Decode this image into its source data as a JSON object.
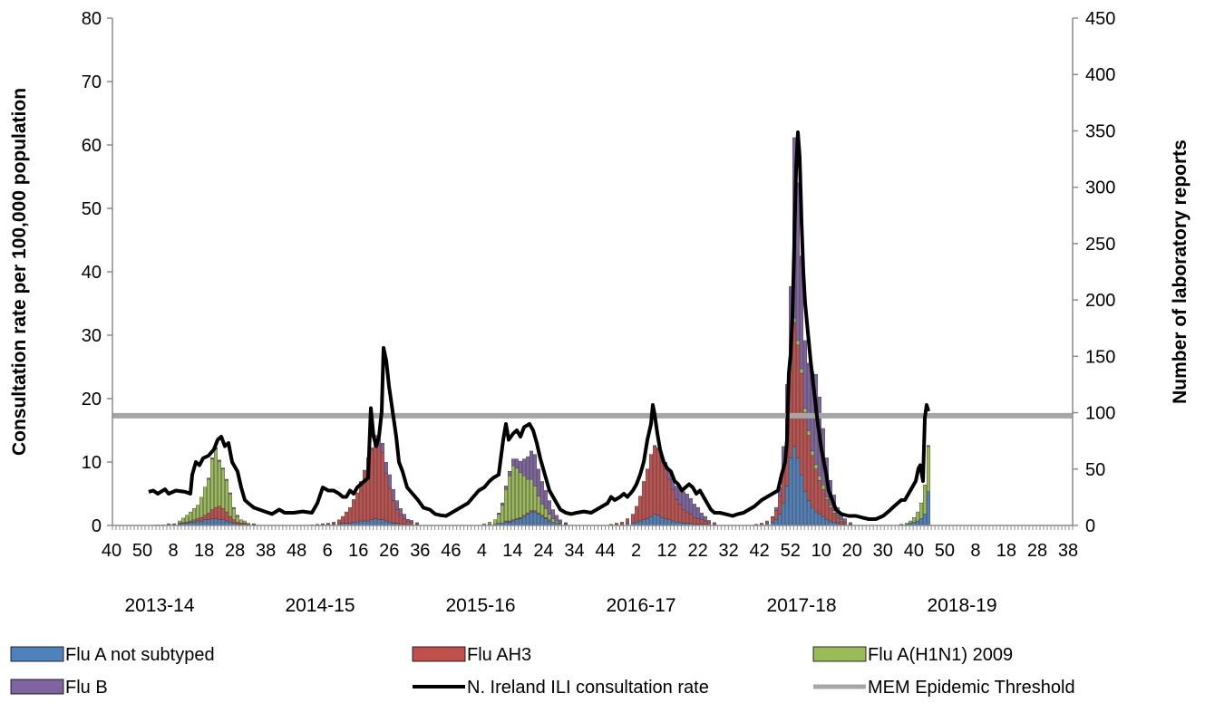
{
  "chart_data": {
    "type": "bar",
    "y_left": {
      "label": "Consultation rate per 100,000 population",
      "ticks": [
        0,
        10,
        20,
        30,
        40,
        50,
        60,
        70,
        80
      ],
      "range": [
        0,
        80
      ]
    },
    "y_right": {
      "label": "Number of laboratory reports",
      "ticks": [
        0,
        50,
        100,
        150,
        200,
        250,
        300,
        350,
        400,
        450
      ],
      "range": [
        0,
        450
      ]
    },
    "x_tick_labels": [
      "40",
      "50",
      "8",
      "18",
      "28",
      "38",
      "48",
      "6",
      "16",
      "26",
      "36",
      "46",
      "4",
      "14",
      "24",
      "34",
      "44",
      "2",
      "12",
      "22",
      "32",
      "42",
      "52",
      "10",
      "20",
      "30",
      "40",
      "50",
      "8",
      "18",
      "28",
      "38"
    ],
    "seasons": [
      "2013-14",
      "2014-15",
      "2015-16",
      "2016-17",
      "2017-18",
      "2018-19"
    ],
    "legend": {
      "flu_a_not_subtyped": "Flu A not subtyped",
      "flu_ah3": "Flu AH3",
      "flu_h1n1": "Flu A(H1N1) 2009",
      "flu_b": "Flu B",
      "ili_rate": "N. Ireland ILI consultation rate",
      "mem_threshold": "MEM Epidemic Threshold"
    },
    "colors": {
      "flu_a_not_subtyped": "#4F81BD",
      "flu_ah3": "#C0504D",
      "flu_h1n1": "#9BBB59",
      "flu_b": "#8064A2",
      "ili_rate": "#000000",
      "mem_threshold": "#A6A6A6"
    },
    "mem_threshold_value": 17.3,
    "ili_series": [
      [
        40,
        5.3
      ],
      [
        45,
        5.5
      ],
      [
        50,
        5.0
      ],
      [
        58,
        5.7
      ],
      [
        62,
        5.0
      ],
      [
        70,
        5.5
      ],
      [
        80,
        5.3
      ],
      [
        86,
        5.0
      ],
      [
        88,
        8.0
      ],
      [
        92,
        10.0
      ],
      [
        96,
        9.5
      ],
      [
        100,
        10.6
      ],
      [
        106,
        11.0
      ],
      [
        112,
        12.0
      ],
      [
        116,
        13.5
      ],
      [
        120,
        14.0
      ],
      [
        124,
        12.5
      ],
      [
        128,
        13.0
      ],
      [
        132,
        10.0
      ],
      [
        138,
        8.5
      ],
      [
        142,
        6.0
      ],
      [
        146,
        4.0
      ],
      [
        150,
        3.5
      ],
      [
        156,
        2.8
      ],
      [
        162,
        2.5
      ],
      [
        168,
        2.2
      ],
      [
        176,
        1.8
      ],
      [
        184,
        2.5
      ],
      [
        190,
        2.0
      ],
      [
        200,
        2.0
      ],
      [
        210,
        2.2
      ],
      [
        220,
        2.0
      ],
      [
        226,
        3.5
      ],
      [
        232,
        6.0
      ],
      [
        238,
        5.5
      ],
      [
        244,
        5.5
      ],
      [
        250,
        5.0
      ],
      [
        254,
        4.5
      ],
      [
        258,
        4.5
      ],
      [
        262,
        5.5
      ],
      [
        266,
        5.0
      ],
      [
        270,
        6.0
      ],
      [
        274,
        6.5
      ],
      [
        278,
        7.0
      ],
      [
        282,
        7.5
      ],
      [
        285,
        18.5
      ],
      [
        288,
        14.0
      ],
      [
        291,
        12.5
      ],
      [
        294,
        14.0
      ],
      [
        297,
        18.0
      ],
      [
        299,
        28.0
      ],
      [
        302,
        26.0
      ],
      [
        305,
        22.0
      ],
      [
        309,
        18.0
      ],
      [
        313,
        14.0
      ],
      [
        316,
        10.0
      ],
      [
        320,
        8.5
      ],
      [
        325,
        6.0
      ],
      [
        331,
        5.0
      ],
      [
        337,
        4.0
      ],
      [
        343,
        2.8
      ],
      [
        350,
        2.5
      ],
      [
        356,
        1.8
      ],
      [
        362,
        1.6
      ],
      [
        368,
        1.5
      ],
      [
        374,
        2.0
      ],
      [
        380,
        2.5
      ],
      [
        386,
        3.0
      ],
      [
        392,
        3.5
      ],
      [
        398,
        4.5
      ],
      [
        404,
        5.5
      ],
      [
        410,
        6.0
      ],
      [
        416,
        7.0
      ],
      [
        420,
        7.5
      ],
      [
        426,
        8.0
      ],
      [
        431,
        13.5
      ],
      [
        434,
        16.0
      ],
      [
        437,
        13.5
      ],
      [
        442,
        14.5
      ],
      [
        446,
        15.0
      ],
      [
        450,
        14.0
      ],
      [
        454,
        15.5
      ],
      [
        460,
        16.0
      ],
      [
        464,
        15.0
      ],
      [
        468,
        13.0
      ],
      [
        472,
        10.5
      ],
      [
        477,
        8.0
      ],
      [
        482,
        5.5
      ],
      [
        488,
        4.0
      ],
      [
        494,
        2.5
      ],
      [
        500,
        2.0
      ],
      [
        506,
        1.8
      ],
      [
        512,
        2.0
      ],
      [
        520,
        2.2
      ],
      [
        528,
        2.0
      ],
      [
        534,
        2.5
      ],
      [
        540,
        3.0
      ],
      [
        546,
        3.5
      ],
      [
        550,
        4.5
      ],
      [
        554,
        4.0
      ],
      [
        560,
        4.5
      ],
      [
        564,
        5.0
      ],
      [
        568,
        4.5
      ],
      [
        574,
        5.5
      ],
      [
        578,
        6.5
      ],
      [
        582,
        8.0
      ],
      [
        586,
        10.0
      ],
      [
        590,
        13.5
      ],
      [
        594,
        16.0
      ],
      [
        596,
        19.0
      ],
      [
        598,
        17.5
      ],
      [
        601,
        14.5
      ],
      [
        604,
        12.0
      ],
      [
        608,
        10.0
      ],
      [
        612,
        9.0
      ],
      [
        616,
        8.5
      ],
      [
        620,
        7.0
      ],
      [
        624,
        6.5
      ],
      [
        628,
        5.5
      ],
      [
        632,
        6.0
      ],
      [
        636,
        6.5
      ],
      [
        640,
        6.0
      ],
      [
        644,
        5.0
      ],
      [
        648,
        5.5
      ],
      [
        652,
        4.5
      ],
      [
        656,
        3.5
      ],
      [
        660,
        2.5
      ],
      [
        664,
        2.0
      ],
      [
        670,
        2.0
      ],
      [
        676,
        1.8
      ],
      [
        684,
        1.5
      ],
      [
        690,
        1.8
      ],
      [
        696,
        2.0
      ],
      [
        702,
        2.5
      ],
      [
        708,
        3.0
      ],
      [
        712,
        3.5
      ],
      [
        716,
        4.0
      ],
      [
        722,
        4.5
      ],
      [
        728,
        5.0
      ],
      [
        734,
        5.5
      ],
      [
        738,
        8.0
      ],
      [
        742,
        10.0
      ],
      [
        744,
        13.5
      ],
      [
        746,
        24.0
      ],
      [
        748,
        27.0
      ],
      [
        750,
        33.0
      ],
      [
        752,
        44.5
      ],
      [
        754,
        56.0
      ],
      [
        756,
        62.0
      ],
      [
        758,
        58.0
      ],
      [
        760,
        48.0
      ],
      [
        762,
        40.0
      ],
      [
        764,
        35.0
      ],
      [
        766,
        32.0
      ],
      [
        768,
        29.0
      ],
      [
        770,
        26.0
      ],
      [
        772,
        23.5
      ],
      [
        774,
        21.0
      ],
      [
        776,
        18.5
      ],
      [
        778,
        16.0
      ],
      [
        780,
        14.0
      ],
      [
        782,
        12.0
      ],
      [
        784,
        10.5
      ],
      [
        786,
        9.0
      ],
      [
        788,
        7.5
      ],
      [
        790,
        5.5
      ],
      [
        794,
        4.0
      ],
      [
        798,
        2.5
      ],
      [
        804,
        1.8
      ],
      [
        812,
        1.5
      ],
      [
        820,
        1.5
      ],
      [
        828,
        1.2
      ],
      [
        834,
        1.0
      ],
      [
        842,
        1.0
      ],
      [
        850,
        1.5
      ],
      [
        856,
        2.2
      ],
      [
        862,
        3.0
      ],
      [
        866,
        3.5
      ],
      [
        870,
        4.0
      ],
      [
        874,
        4.0
      ],
      [
        878,
        5.0
      ],
      [
        882,
        6.0
      ],
      [
        886,
        7.0
      ],
      [
        889,
        9.0
      ],
      [
        891,
        9.5
      ],
      [
        894,
        7.0
      ],
      [
        896,
        17.0
      ],
      [
        898,
        19.0
      ],
      [
        900,
        18.0
      ]
    ],
    "bars_series": [
      [
        50,
        0.5,
        0,
        0,
        0
      ],
      [
        56,
        0.5,
        0,
        0,
        0
      ],
      [
        62,
        1.0,
        0,
        0.5,
        0
      ],
      [
        68,
        1.0,
        0,
        0.5,
        0
      ],
      [
        74,
        1.5,
        0.5,
        2,
        0
      ],
      [
        78,
        2,
        0.5,
        4,
        0
      ],
      [
        82,
        2,
        1,
        6,
        0
      ],
      [
        86,
        3,
        1,
        8,
        0
      ],
      [
        90,
        3,
        2,
        10,
        0
      ],
      [
        94,
        4,
        2,
        12,
        0
      ],
      [
        98,
        4,
        3,
        18,
        0
      ],
      [
        102,
        5,
        4,
        25,
        0
      ],
      [
        106,
        5,
        6,
        30,
        1
      ],
      [
        110,
        6,
        8,
        45,
        1
      ],
      [
        114,
        6,
        10,
        52,
        1
      ],
      [
        118,
        5,
        12,
        40,
        1
      ],
      [
        122,
        5,
        10,
        35,
        1
      ],
      [
        126,
        4,
        8,
        28,
        1
      ],
      [
        130,
        3,
        5,
        20,
        1
      ],
      [
        134,
        2,
        3,
        10,
        1
      ],
      [
        138,
        1,
        2,
        5,
        1
      ],
      [
        142,
        1,
        1,
        3,
        0
      ],
      [
        146,
        1,
        1,
        2,
        0
      ],
      [
        150,
        0.5,
        0.5,
        1,
        0
      ],
      [
        156,
        0.5,
        0.5,
        0.5,
        0
      ],
      [
        220,
        0.5,
        0,
        0,
        0
      ],
      [
        226,
        0.5,
        0.5,
        0,
        0
      ],
      [
        232,
        1,
        0.5,
        0,
        0
      ],
      [
        238,
        1,
        1,
        0,
        0
      ],
      [
        244,
        1,
        2,
        0,
        0
      ],
      [
        250,
        1,
        4,
        0,
        0
      ],
      [
        254,
        2,
        6,
        0,
        0
      ],
      [
        258,
        2,
        10,
        0,
        0
      ],
      [
        262,
        2,
        14,
        0,
        0
      ],
      [
        266,
        3,
        20,
        0,
        0
      ],
      [
        270,
        3,
        26,
        0,
        0
      ],
      [
        274,
        4,
        35,
        0,
        0
      ],
      [
        278,
        4,
        45,
        0,
        0
      ],
      [
        282,
        4,
        55,
        0,
        1
      ],
      [
        286,
        5,
        62,
        0,
        2
      ],
      [
        290,
        6,
        70,
        0,
        4
      ],
      [
        294,
        5,
        66,
        0,
        6
      ],
      [
        298,
        5,
        60,
        0,
        8
      ],
      [
        302,
        4,
        42,
        0,
        10
      ],
      [
        306,
        3,
        30,
        0,
        12
      ],
      [
        310,
        2,
        20,
        0,
        10
      ],
      [
        314,
        2,
        12,
        0,
        8
      ],
      [
        318,
        1,
        8,
        0,
        6
      ],
      [
        322,
        1,
        5,
        0,
        4
      ],
      [
        326,
        0.5,
        3,
        0,
        2
      ],
      [
        330,
        0.5,
        2,
        0,
        2
      ],
      [
        336,
        0.5,
        1,
        0,
        1
      ],
      [
        410,
        0.5,
        0,
        1,
        0
      ],
      [
        416,
        1,
        0,
        2,
        0
      ],
      [
        422,
        1,
        0,
        4,
        0
      ],
      [
        426,
        2,
        0,
        8,
        1
      ],
      [
        430,
        2,
        0,
        16,
        2
      ],
      [
        434,
        3,
        1,
        28,
        3
      ],
      [
        438,
        3,
        1,
        40,
        4
      ],
      [
        442,
        4,
        1,
        48,
        6
      ],
      [
        446,
        5,
        1,
        45,
        8
      ],
      [
        450,
        6,
        1,
        40,
        10
      ],
      [
        454,
        8,
        1,
        35,
        15
      ],
      [
        458,
        10,
        1,
        30,
        20
      ],
      [
        462,
        12,
        1,
        28,
        25
      ],
      [
        466,
        12,
        1,
        22,
        28
      ],
      [
        470,
        10,
        1,
        15,
        24
      ],
      [
        474,
        8,
        1,
        10,
        20
      ],
      [
        478,
        6,
        1,
        8,
        16
      ],
      [
        482,
        4,
        1,
        5,
        12
      ],
      [
        486,
        3,
        0,
        3,
        8
      ],
      [
        490,
        2,
        0,
        2,
        5
      ],
      [
        494,
        1,
        0,
        1,
        3
      ],
      [
        500,
        1,
        0,
        0.5,
        1
      ],
      [
        550,
        0.5,
        0.5,
        0,
        0
      ],
      [
        556,
        1,
        1,
        0,
        0
      ],
      [
        562,
        1,
        2,
        0,
        0
      ],
      [
        568,
        2,
        4,
        0,
        0
      ],
      [
        574,
        2,
        8,
        0,
        0
      ],
      [
        578,
        3,
        14,
        0,
        0
      ],
      [
        582,
        4,
        22,
        0,
        0
      ],
      [
        586,
        5,
        34,
        0,
        0
      ],
      [
        590,
        6,
        44,
        0,
        0
      ],
      [
        594,
        8,
        55,
        0,
        0
      ],
      [
        598,
        10,
        60,
        0,
        1
      ],
      [
        602,
        9,
        58,
        0,
        2
      ],
      [
        606,
        7,
        50,
        0,
        4
      ],
      [
        610,
        6,
        44,
        0,
        6
      ],
      [
        614,
        5,
        36,
        0,
        8
      ],
      [
        618,
        4,
        28,
        0,
        10
      ],
      [
        622,
        3,
        20,
        0,
        12
      ],
      [
        626,
        3,
        16,
        0,
        14
      ],
      [
        630,
        2,
        12,
        0,
        16
      ],
      [
        634,
        2,
        10,
        0,
        16
      ],
      [
        638,
        2,
        8,
        0,
        14
      ],
      [
        642,
        1,
        6,
        0,
        12
      ],
      [
        646,
        1,
        5,
        0,
        10
      ],
      [
        650,
        1,
        4,
        0,
        6
      ],
      [
        654,
        1,
        3,
        0,
        4
      ],
      [
        658,
        0.5,
        2,
        0,
        2
      ],
      [
        664,
        0.5,
        1,
        0,
        1
      ],
      [
        710,
        0.5,
        0.5,
        0,
        0
      ],
      [
        716,
        1,
        1,
        0,
        0
      ],
      [
        722,
        2,
        2,
        0,
        0
      ],
      [
        728,
        3,
        4,
        0,
        1
      ],
      [
        732,
        5,
        8,
        0,
        3
      ],
      [
        736,
        10,
        16,
        0,
        8
      ],
      [
        740,
        20,
        30,
        0,
        20
      ],
      [
        744,
        35,
        50,
        0,
        40
      ],
      [
        748,
        60,
        80,
        2,
        70
      ],
      [
        752,
        70,
        110,
        4,
        160
      ],
      [
        756,
        60,
        100,
        4,
        140
      ],
      [
        760,
        45,
        90,
        4,
        100
      ],
      [
        764,
        30,
        70,
        4,
        60
      ],
      [
        768,
        22,
        58,
        4,
        60
      ],
      [
        772,
        16,
        46,
        4,
        70
      ],
      [
        776,
        12,
        38,
        4,
        80
      ],
      [
        780,
        10,
        30,
        4,
        70
      ],
      [
        784,
        8,
        24,
        4,
        50
      ],
      [
        788,
        5,
        18,
        2,
        35
      ],
      [
        792,
        4,
        12,
        2,
        22
      ],
      [
        796,
        3,
        8,
        2,
        14
      ],
      [
        800,
        2,
        5,
        1,
        8
      ],
      [
        804,
        1,
        3,
        1,
        5
      ],
      [
        808,
        1,
        2,
        0,
        3
      ],
      [
        814,
        0.5,
        1,
        0,
        1
      ],
      [
        870,
        0.5,
        0,
        0.5,
        0
      ],
      [
        876,
        1,
        0,
        1,
        0
      ],
      [
        880,
        2,
        0,
        2,
        0
      ],
      [
        884,
        3,
        0,
        4,
        0
      ],
      [
        888,
        4,
        0,
        8,
        0
      ],
      [
        892,
        6,
        0,
        14,
        0
      ],
      [
        896,
        10,
        0,
        26,
        0
      ],
      [
        900,
        30,
        0,
        40,
        1
      ]
    ],
    "bars_unit_note": "bar values are counts on right axis (laboratory reports), stacked: Flu A not subtyped, Flu AH3, Flu A(H1N1) 2009, Flu B",
    "ili_unit_note": "ILI values on left axis; x is week index across seasons"
  }
}
